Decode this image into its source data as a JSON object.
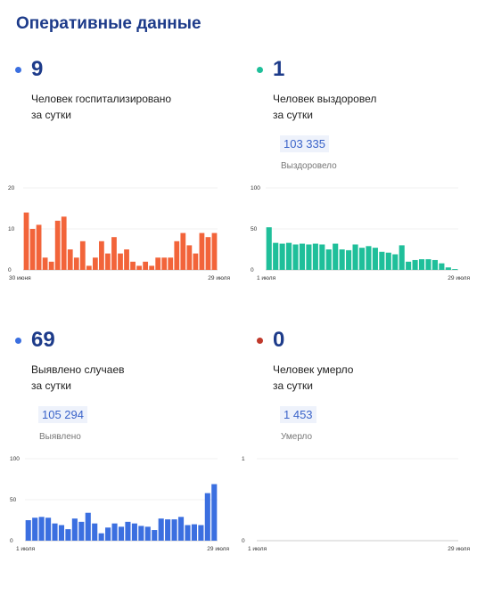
{
  "page_title": "Оперативные данные",
  "panels": [
    {
      "count": "9",
      "line1": "Человек госпитализировано",
      "line2": "за сутки",
      "total": "",
      "total_label": "",
      "dot_color": "#3b6fe0"
    },
    {
      "count": "1",
      "line1": "Человек выздоровел",
      "line2": "за сутки",
      "total": "103 335",
      "total_label": "Выздоровело",
      "dot_color": "#1fbf9a"
    },
    {
      "count": "69",
      "line1": "Выявлено случаев",
      "line2": "за сутки",
      "total": "105 294",
      "total_label": "Выявлено",
      "dot_color": "#3b6fe0"
    },
    {
      "count": "0",
      "line1": "Человек умерло",
      "line2": "за сутки",
      "total": "1 453",
      "total_label": "Умерло",
      "dot_color": "#c0392b"
    }
  ],
  "chart_data": [
    {
      "type": "bar",
      "color": "#f2643a",
      "ylim": [
        0,
        20
      ],
      "yticks": [
        "0",
        "10",
        "20"
      ],
      "x_start_label": "30 июня",
      "x_end_label": "29 июля",
      "values": [
        14,
        10,
        11,
        3,
        2,
        12,
        13,
        5,
        3,
        7,
        1,
        3,
        7,
        4,
        8,
        4,
        5,
        2,
        1,
        2,
        1,
        3,
        3,
        3,
        7,
        9,
        6,
        4,
        9,
        8,
        9
      ]
    },
    {
      "type": "bar",
      "color": "#1fbf9a",
      "ylim": [
        0,
        100
      ],
      "yticks": [
        "0",
        "50",
        "100"
      ],
      "x_start_label": "1 июля",
      "x_end_label": "29 июля",
      "values": [
        52,
        33,
        32,
        33,
        31,
        32,
        31,
        32,
        31,
        25,
        32,
        25,
        24,
        31,
        27,
        29,
        27,
        22,
        21,
        19,
        30,
        10,
        12,
        13,
        13,
        12,
        8,
        3,
        1
      ]
    },
    {
      "type": "bar",
      "color": "#3b6fe0",
      "ylim": [
        0,
        100
      ],
      "yticks": [
        "0",
        "50",
        "100"
      ],
      "x_start_label": "1 июля",
      "x_end_label": "29 июля",
      "values": [
        25,
        28,
        29,
        28,
        21,
        19,
        14,
        27,
        23,
        34,
        21,
        9,
        16,
        21,
        17,
        23,
        21,
        18,
        17,
        13,
        27,
        26,
        26,
        29,
        19,
        20,
        19,
        58,
        69
      ]
    },
    {
      "type": "bar",
      "color": "#c0392b",
      "ylim": [
        0,
        1
      ],
      "yticks": [
        "0",
        "1"
      ],
      "x_start_label": "1 июля",
      "x_end_label": "29 июля",
      "values": [
        0,
        0,
        0,
        0,
        0,
        0,
        0,
        0,
        0,
        0,
        0,
        0,
        0,
        0,
        0,
        0,
        0,
        0,
        0,
        0,
        0,
        0,
        0,
        0,
        0,
        0,
        0,
        0,
        0
      ]
    }
  ]
}
